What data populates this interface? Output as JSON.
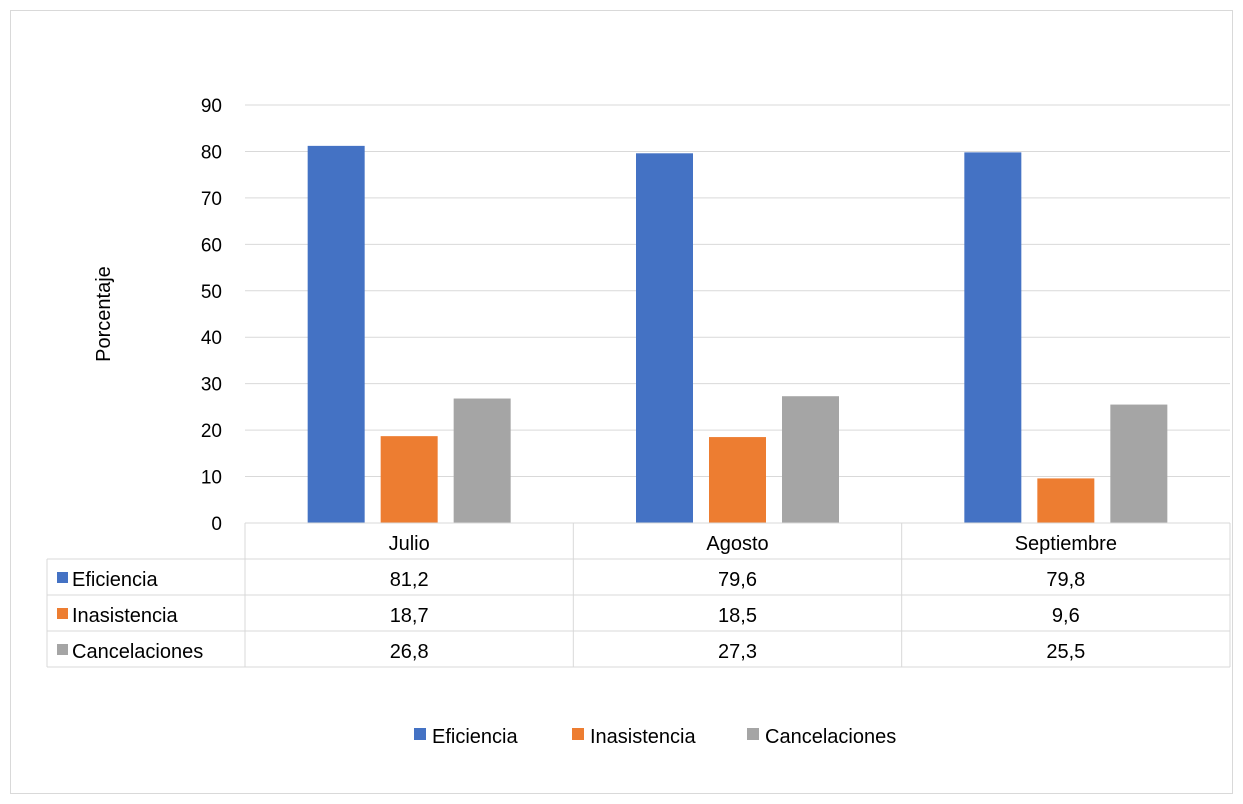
{
  "chart_data": {
    "type": "bar",
    "title": "",
    "xlabel": "",
    "ylabel": "Porcentaje",
    "ylim": [
      0,
      90
    ],
    "yticks": [
      0,
      10,
      20,
      30,
      40,
      50,
      60,
      70,
      80,
      90
    ],
    "grid": true,
    "legend_position": "bottom",
    "categories": [
      "Julio",
      "Agosto",
      "Septiembre"
    ],
    "series": [
      {
        "name": "Eficiencia",
        "values": [
          81.2,
          79.6,
          79.8
        ],
        "color": "#4472c4"
      },
      {
        "name": "Inasistencia",
        "values": [
          18.7,
          18.5,
          9.6
        ],
        "color": "#ed7d31"
      },
      {
        "name": "Cancelaciones",
        "values": [
          26.8,
          27.3,
          25.5
        ],
        "color": "#a5a5a5"
      }
    ],
    "data_table": {
      "rows": [
        {
          "name": "Eficiencia",
          "cells": [
            "81,2",
            "79,6",
            "79,8"
          ]
        },
        {
          "name": "Inasistencia",
          "cells": [
            "18,7",
            "18,5",
            "9,6"
          ]
        },
        {
          "name": "Cancelaciones",
          "cells": [
            "26,8",
            "27,3",
            "25,5"
          ]
        }
      ]
    }
  }
}
